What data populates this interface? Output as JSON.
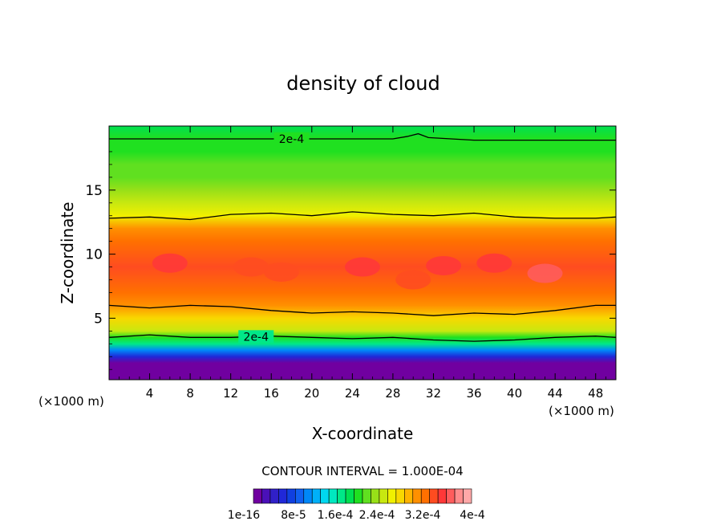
{
  "chart_data": {
    "type": "contour",
    "title": "density of cloud",
    "xlabel": "X-coordinate",
    "ylabel": "Z-coordinate",
    "x_unit": "(×1000 m)",
    "x_unit_right": "(×1000 m)",
    "xlim": [
      0,
      50
    ],
    "ylim": [
      0.2,
      20.0
    ],
    "x_ticks": [
      4,
      8,
      12,
      16,
      20,
      24,
      28,
      32,
      36,
      40,
      44,
      48
    ],
    "y_ticks": [
      5,
      10,
      15
    ],
    "contour_interval_text": "CONTOUR INTERVAL = 1.000E-04",
    "contour_label_text": "2e-4",
    "colorbar_labels": [
      "1e-16",
      "8e-5",
      "1.6e-4",
      "2.4e-4",
      "3.2e-4",
      "4e-4"
    ],
    "colors": [
      "#7000a0",
      "#4a10b8",
      "#3020c8",
      "#2028d8",
      "#1040e0",
      "#1060f0",
      "#0088f8",
      "#00b0f8",
      "#00d8f0",
      "#00e8c0",
      "#00e888",
      "#00e050",
      "#20e020",
      "#60e020",
      "#98e018",
      "#c8e810",
      "#f0f000",
      "#f8d800",
      "#ffb400",
      "#ff9000",
      "#ff7000",
      "#ff4c20",
      "#ff3838",
      "#ff5c5c",
      "#ff8c8c",
      "#ffa8a8"
    ],
    "vertical_profile": [
      {
        "z": 0.2,
        "value": 0.0
      },
      {
        "z": 1.0,
        "value": 0.0
      },
      {
        "z": 1.5,
        "value": 1e-05
      },
      {
        "z": 2.0,
        "value": 6e-05
      },
      {
        "z": 2.5,
        "value": 0.00011
      },
      {
        "z": 3.0,
        "value": 0.00016
      },
      {
        "z": 3.5,
        "value": 0.0002
      },
      {
        "z": 4.0,
        "value": 0.00024
      },
      {
        "z": 5.0,
        "value": 0.00028
      },
      {
        "z": 6.0,
        "value": 0.00031
      },
      {
        "z": 7.0,
        "value": 0.00033
      },
      {
        "z": 9.0,
        "value": 0.00034
      },
      {
        "z": 11.0,
        "value": 0.00033
      },
      {
        "z": 12.0,
        "value": 0.00031
      },
      {
        "z": 13.0,
        "value": 0.00027
      },
      {
        "z": 14.0,
        "value": 0.00025
      },
      {
        "z": 15.0,
        "value": 0.00023
      },
      {
        "z": 16.0,
        "value": 0.00022
      },
      {
        "z": 17.0,
        "value": 0.000215
      },
      {
        "z": 18.0,
        "value": 0.000205
      },
      {
        "z": 19.0,
        "value": 0.0002
      },
      {
        "z": 20.0,
        "value": 0.00018
      }
    ],
    "contour_lines": [
      {
        "level": 0.0002,
        "labeled": true,
        "points": [
          [
            0,
            3.5
          ],
          [
            4,
            3.7
          ],
          [
            8,
            3.5
          ],
          [
            12,
            3.5
          ],
          [
            16,
            3.6
          ],
          [
            20,
            3.5
          ],
          [
            24,
            3.4
          ],
          [
            28,
            3.5
          ],
          [
            32,
            3.3
          ],
          [
            36,
            3.2
          ],
          [
            40,
            3.3
          ],
          [
            44,
            3.5
          ],
          [
            48,
            3.6
          ],
          [
            50,
            3.5
          ]
        ]
      },
      {
        "level": 0.0003,
        "labeled": false,
        "points": [
          [
            0,
            6.0
          ],
          [
            4,
            5.8
          ],
          [
            8,
            6.0
          ],
          [
            12,
            5.9
          ],
          [
            16,
            5.6
          ],
          [
            20,
            5.4
          ],
          [
            24,
            5.5
          ],
          [
            28,
            5.4
          ],
          [
            32,
            5.2
          ],
          [
            36,
            5.4
          ],
          [
            40,
            5.3
          ],
          [
            44,
            5.6
          ],
          [
            48,
            6.0
          ],
          [
            50,
            6.0
          ]
        ]
      },
      {
        "level": 0.0003,
        "labeled": false,
        "points": [
          [
            0,
            12.8
          ],
          [
            4,
            12.9
          ],
          [
            8,
            12.7
          ],
          [
            12,
            13.1
          ],
          [
            16,
            13.2
          ],
          [
            20,
            13.0
          ],
          [
            24,
            13.3
          ],
          [
            28,
            13.1
          ],
          [
            32,
            13.0
          ],
          [
            36,
            13.2
          ],
          [
            40,
            12.9
          ],
          [
            44,
            12.8
          ],
          [
            48,
            12.8
          ],
          [
            50,
            12.9
          ]
        ]
      },
      {
        "level": 0.0002,
        "labeled": true,
        "points": [
          [
            0,
            19.0
          ],
          [
            8,
            19.0
          ],
          [
            16,
            19.0
          ],
          [
            24,
            19.0
          ],
          [
            28,
            19.0
          ],
          [
            29.5,
            19.2
          ],
          [
            30.5,
            19.4
          ],
          [
            31.5,
            19.1
          ],
          [
            36,
            18.9
          ],
          [
            44,
            18.9
          ],
          [
            50,
            18.9
          ]
        ]
      }
    ],
    "local_maxima": [
      {
        "x": 6,
        "z": 9.3,
        "value": 0.00036
      },
      {
        "x": 14,
        "z": 9.0,
        "value": 0.00035
      },
      {
        "x": 17,
        "z": 8.6,
        "value": 0.00035
      },
      {
        "x": 25,
        "z": 9.0,
        "value": 0.00036
      },
      {
        "x": 30,
        "z": 8.0,
        "value": 0.00035
      },
      {
        "x": 33,
        "z": 9.1,
        "value": 0.00036
      },
      {
        "x": 38,
        "z": 9.3,
        "value": 0.00036
      },
      {
        "x": 43,
        "z": 8.5,
        "value": 0.00038
      }
    ]
  }
}
